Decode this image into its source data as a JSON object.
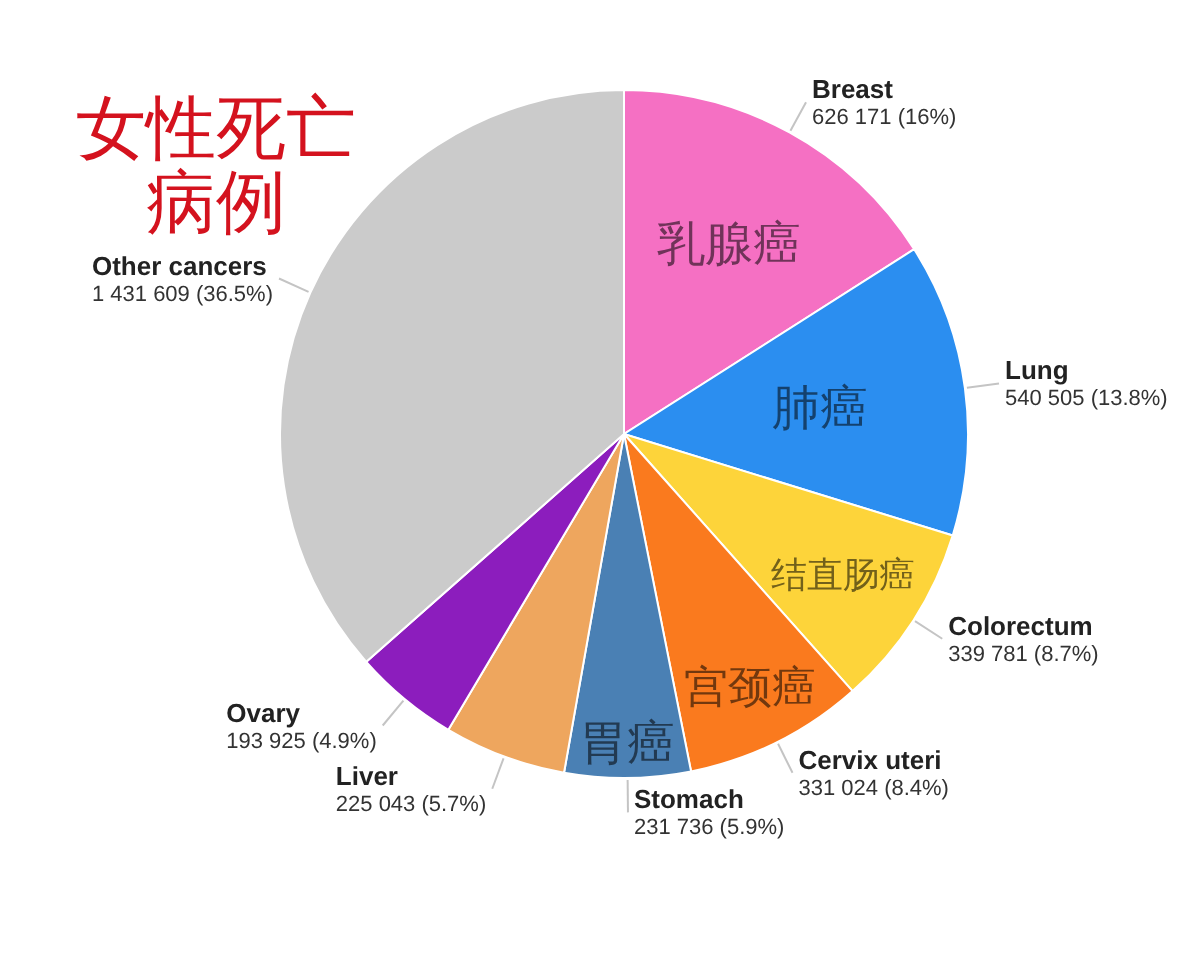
{
  "chart_data": {
    "type": "pie",
    "title": "女性死亡病例",
    "categories": [
      "Breast",
      "Lung",
      "Colorectum",
      "Cervix uteri",
      "Stomach",
      "Liver",
      "Ovary",
      "Other cancers"
    ],
    "values": [
      626171,
      540505,
      339781,
      331024,
      231736,
      225043,
      193925,
      1431609
    ],
    "colors": [
      "#f570c3",
      "#2b8ef0",
      "#fdd43a",
      "#fa7a1e",
      "#4a80b4",
      "#eea65e",
      "#8c1dbd",
      "#cbcbcb"
    ],
    "value_labels": [
      "626 171 (16%)",
      "540 505 (13.8%)",
      "339 781 (8.7%)",
      "331 024 (8.4%)",
      "231 736 (5.9%)",
      "225 043 (5.7%)",
      "193 925 (4.9%)",
      "1 431 609 (36.5%)"
    ],
    "annotations": [
      {
        "text": "乳腺癌",
        "x": "Breast"
      },
      {
        "text": "肺癌",
        "x": "Lung"
      },
      {
        "text": "结直肠癌",
        "x": "Colorectum"
      },
      {
        "text": "宫颈癌",
        "x": "Cervix uteri"
      },
      {
        "text": "胃癌",
        "x": "Stomach"
      }
    ]
  }
}
